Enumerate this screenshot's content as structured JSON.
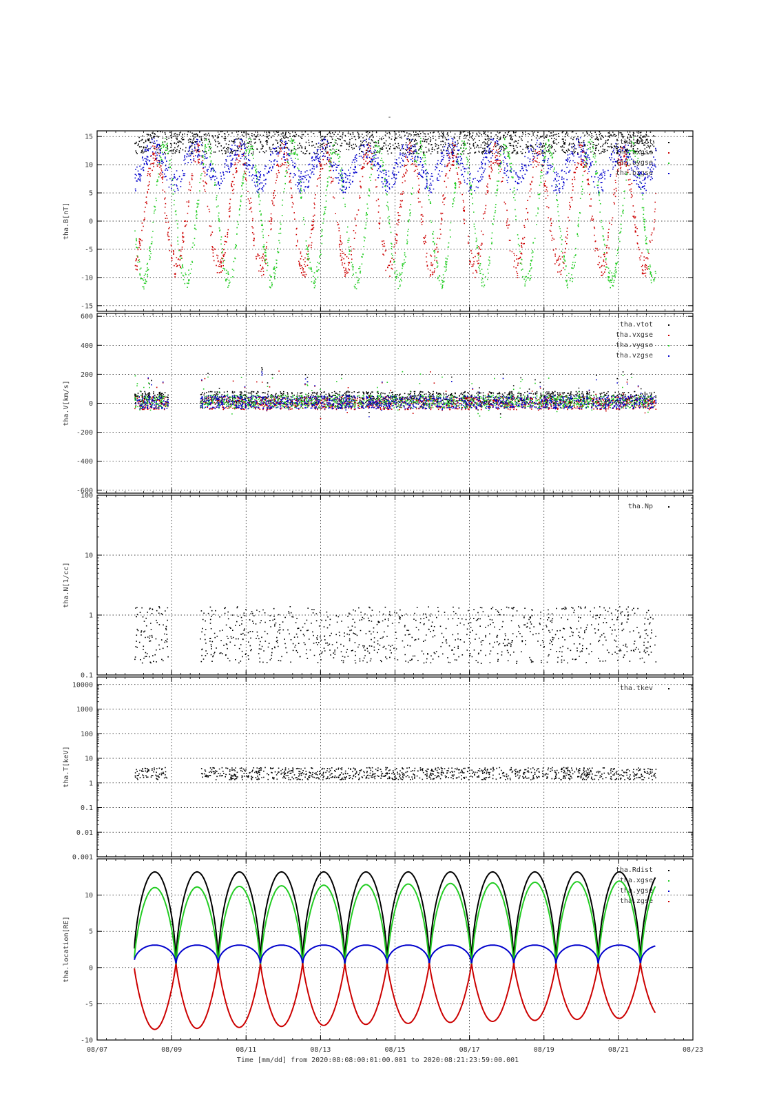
{
  "page_title": "-",
  "xaxis": {
    "tick_labels": [
      "08/07",
      "08/09",
      "08/11",
      "08/13",
      "08/15",
      "08/17",
      "08/19",
      "08/21",
      "08/23"
    ],
    "range_days": [
      7,
      23
    ],
    "label": "Time [mm/dd]  from 2020:08:08:00:01:00.001  to  2020:08:21:23:59:00.001"
  },
  "colors": {
    "black": "#000000",
    "red": "#cc0000",
    "green": "#22cc22",
    "blue": "#0000cc",
    "grid": "#000000"
  },
  "chart_data": [
    {
      "type": "scatter",
      "ylabel": "tha.B[nT]",
      "ylim": [
        -16,
        16
      ],
      "yscale": "linear",
      "y_ticks": [
        15,
        10,
        5,
        0,
        -5,
        -10,
        -15
      ],
      "legend_position": "top-right",
      "series": [
        {
          "name": "tha.btot",
          "color": "black"
        },
        {
          "name": "tha.bxgse",
          "color": "red"
        },
        {
          "name": "tha.bygse",
          "color": "green"
        },
        {
          "name": "tha.bzgse",
          "color": "blue"
        }
      ],
      "data_window_days": [
        8.0,
        22.0
      ]
    },
    {
      "type": "scatter",
      "ylabel": "tha.V[km/s]",
      "ylim": [
        -620,
        620
      ],
      "yscale": "linear",
      "y_ticks": [
        600,
        400,
        200,
        0,
        -200,
        -400,
        -600
      ],
      "legend_position": "top-right",
      "series": [
        {
          "name": "tha.vtot",
          "color": "black"
        },
        {
          "name": "tha.vxgse",
          "color": "red"
        },
        {
          "name": "tha.vygse",
          "color": "green"
        },
        {
          "name": "tha.vzgse",
          "color": "blue"
        }
      ],
      "data_window_days": [
        8.0,
        22.0
      ]
    },
    {
      "type": "scatter",
      "ylabel": "tha.N[1/cc]",
      "ylim": [
        0.1,
        100
      ],
      "yscale": "log",
      "y_ticks": [
        100,
        10,
        1,
        0.1
      ],
      "legend_position": "top-right",
      "series": [
        {
          "name": "tha.Np",
          "color": "black"
        }
      ],
      "data_window_days": [
        8.0,
        22.0
      ]
    },
    {
      "type": "scatter",
      "ylabel": "tha.T[keV]",
      "ylim": [
        0.001,
        20000
      ],
      "yscale": "log",
      "y_ticks": [
        10000,
        1000,
        100,
        10,
        1,
        0.1,
        0.01,
        0.001
      ],
      "legend_position": "top-right",
      "series": [
        {
          "name": "tha.tkev",
          "color": "black"
        }
      ],
      "data_window_days": [
        8.0,
        22.0
      ]
    },
    {
      "type": "line",
      "ylabel": "tha.location[RE]",
      "ylim": [
        -10,
        15
      ],
      "yscale": "linear",
      "y_ticks": [
        10,
        5,
        0,
        -5,
        -10
      ],
      "legend_position": "top-right",
      "orbit_period_days": 1.134,
      "first_apogee_day": 8.55,
      "series": [
        {
          "name": "tha.Rdist",
          "color": "black",
          "peak": 13.2
        },
        {
          "name": "tha.xgse",
          "color": "green",
          "peak_start": 11.0,
          "peak_end": 12.0
        },
        {
          "name": "tha.ygse",
          "color": "blue",
          "peak": 3.1
        },
        {
          "name": "tha.zgse",
          "color": "red",
          "trough_start": -8.6,
          "trough_end": -6.9
        }
      ],
      "data_window_days": [
        8.0,
        22.0
      ]
    }
  ]
}
